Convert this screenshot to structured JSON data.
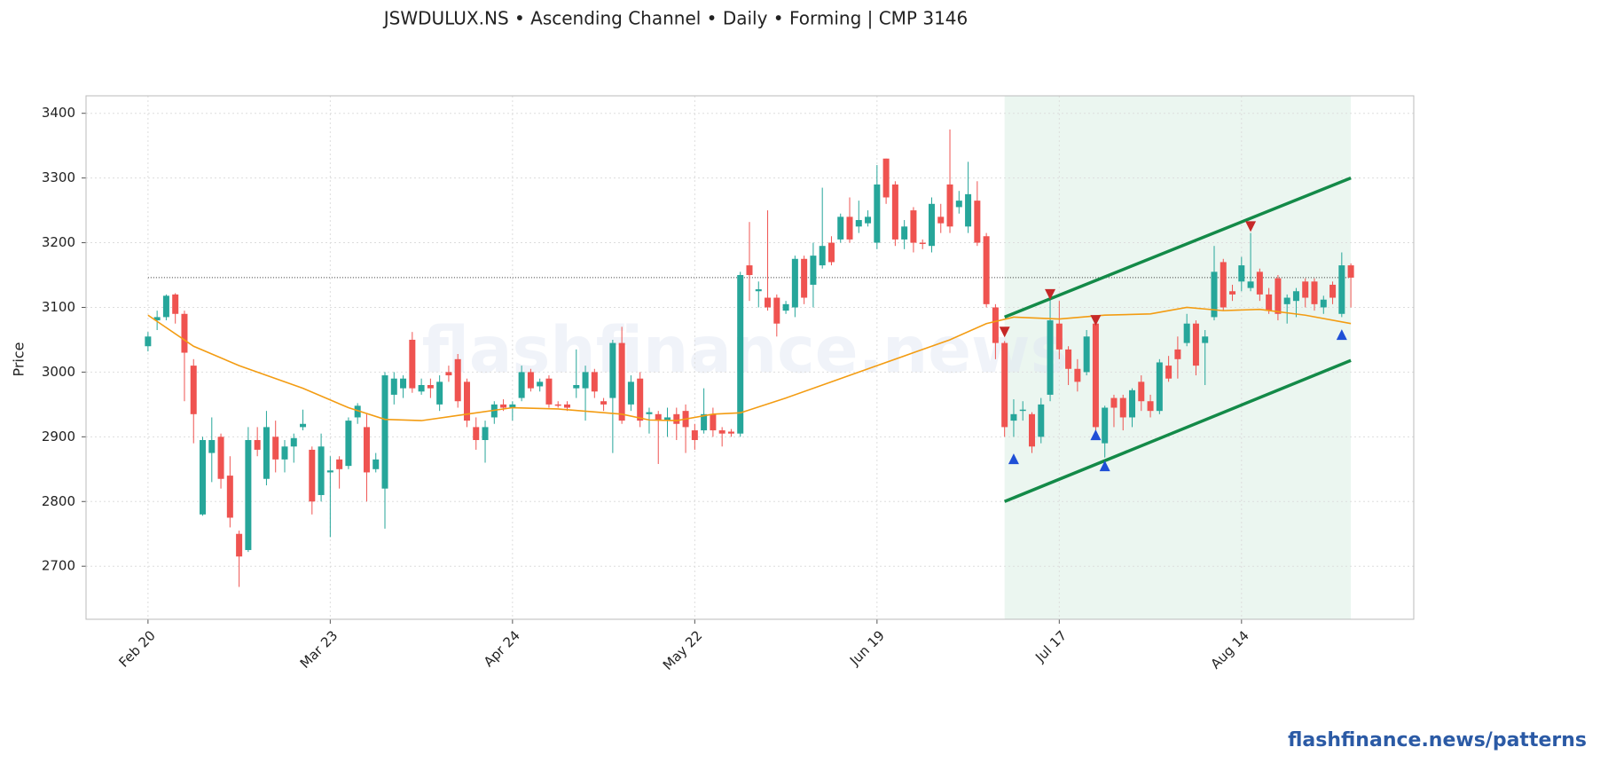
{
  "chart_data": {
    "type": "candlestick",
    "title": "JSWDULUX.NS  •  Ascending Channel  •  Daily  •  Forming  |  CMP 3146",
    "y_label": "Price",
    "watermark": "flashfinance.news",
    "footer": "flashfinance.news/patterns",
    "xlim": [
      -6.8,
      138.9
    ],
    "xticks": [
      {
        "value": 0,
        "label": "Feb 20"
      },
      {
        "value": 20,
        "label": "Mar 23"
      },
      {
        "value": 40,
        "label": "Apr 24"
      },
      {
        "value": 60,
        "label": "May 22"
      },
      {
        "value": 80,
        "label": "Jun 19"
      },
      {
        "value": 100,
        "label": "Jul 17"
      },
      {
        "value": 120,
        "label": "Aug 14"
      }
    ],
    "ylim": [
      2618,
      3427
    ],
    "yticks": [
      2700,
      2800,
      2900,
      3000,
      3100,
      3200,
      3300,
      3400
    ],
    "grid": true,
    "up_color": "#26a69a",
    "down_color": "#ef5350",
    "open": [
      3040,
      3080,
      3085,
      3120,
      3090,
      3010,
      2780,
      2875,
      2900,
      2840,
      2750,
      2725,
      2895,
      2835,
      2900,
      2865,
      2885,
      2915,
      2880,
      2810,
      2845,
      2865,
      2855,
      2930,
      2915,
      2850,
      2820,
      2965,
      2975,
      3050,
      2970,
      2980,
      2950,
      3000,
      3020,
      2985,
      2915,
      2895,
      2930,
      2950,
      2945,
      2960,
      3000,
      2978,
      2990,
      2950,
      2950,
      2975,
      2975,
      3000,
      2955,
      2960,
      3045,
      2950,
      2990,
      2935,
      2935,
      2925,
      2935,
      2940,
      2910,
      2910,
      2935,
      2910,
      2908,
      2905,
      3165,
      3125,
      3115,
      3115,
      3095,
      3100,
      3175,
      3135,
      3165,
      3200,
      3205,
      3240,
      3225,
      3230,
      3200,
      3330,
      3290,
      3205,
      3250,
      3200,
      3195,
      3240,
      3290,
      3255,
      3225,
      3265,
      3210,
      3100,
      3045,
      2925,
      2940,
      2935,
      2900,
      2965,
      3075,
      3035,
      3005,
      3000,
      3075,
      2890,
      2960,
      2960,
      2930,
      2985,
      2955,
      2940,
      3010,
      3035,
      3045,
      3075,
      3045,
      3085,
      3170,
      3125,
      3140,
      3130,
      3155,
      3120,
      3145,
      3105,
      3110,
      3140,
      3140,
      3100,
      3135,
      3090,
      3165
    ],
    "high": [
      3062,
      3095,
      3120,
      3122,
      3095,
      3020,
      2900,
      2930,
      2905,
      2870,
      2755,
      2915,
      2915,
      2940,
      2925,
      2895,
      2905,
      2942,
      2885,
      2905,
      2870,
      2870,
      2930,
      2952,
      2935,
      2875,
      3000,
      3000,
      2995,
      3062,
      2990,
      2990,
      2995,
      3010,
      3028,
      2990,
      2930,
      2925,
      2955,
      2958,
      2955,
      3010,
      3005,
      2990,
      2995,
      2955,
      2955,
      3035,
      3010,
      3005,
      2960,
      3050,
      3070,
      2995,
      3000,
      2945,
      2940,
      2945,
      2945,
      2950,
      2920,
      2975,
      2945,
      2915,
      2912,
      3155,
      3232,
      3140,
      3250,
      3120,
      3110,
      3180,
      3180,
      3200,
      3285,
      3210,
      3245,
      3270,
      3265,
      3250,
      3320,
      3330,
      3295,
      3235,
      3255,
      3205,
      3270,
      3260,
      3375,
      3280,
      3325,
      3295,
      3215,
      3105,
      3048,
      2958,
      2955,
      2938,
      2960,
      3118,
      3110,
      3040,
      3020,
      3065,
      3085,
      2948,
      2965,
      2965,
      2975,
      2995,
      2965,
      3020,
      3025,
      3055,
      3090,
      3080,
      3065,
      3195,
      3175,
      3135,
      3178,
      3215,
      3160,
      3130,
      3150,
      3120,
      3130,
      3145,
      3145,
      3118,
      3140,
      3185,
      3168
    ],
    "low": [
      3032,
      3065,
      3080,
      3075,
      2955,
      2890,
      2778,
      2830,
      2820,
      2760,
      2668,
      2722,
      2870,
      2825,
      2845,
      2845,
      2860,
      2910,
      2780,
      2800,
      2745,
      2820,
      2850,
      2920,
      2800,
      2845,
      2758,
      2950,
      2960,
      2968,
      2965,
      2960,
      2940,
      2985,
      2945,
      2915,
      2880,
      2860,
      2920,
      2940,
      2925,
      2955,
      2970,
      2970,
      2945,
      2945,
      2940,
      2960,
      2925,
      2960,
      2940,
      2875,
      2920,
      2940,
      2915,
      2905,
      2858,
      2900,
      2895,
      2875,
      2880,
      2905,
      2900,
      2885,
      2900,
      2900,
      3110,
      3100,
      3095,
      3055,
      3090,
      3085,
      3105,
      3100,
      3160,
      3165,
      3200,
      3200,
      3215,
      3225,
      3190,
      3260,
      3195,
      3190,
      3185,
      3190,
      3185,
      3215,
      3215,
      3245,
      3215,
      3195,
      3100,
      3020,
      2900,
      2900,
      2925,
      2875,
      2890,
      2955,
      3020,
      2980,
      2970,
      2995,
      2905,
      2868,
      2915,
      2910,
      2915,
      2940,
      2930,
      2935,
      2985,
      2990,
      3040,
      2995,
      2980,
      3080,
      3095,
      3110,
      3125,
      3125,
      3110,
      3090,
      3080,
      3075,
      3085,
      3100,
      3095,
      3090,
      3105,
      3085,
      3100
    ],
    "close": [
      3055,
      3085,
      3118,
      3090,
      3030,
      2935,
      2895,
      2895,
      2835,
      2775,
      2715,
      2895,
      2880,
      2915,
      2865,
      2885,
      2898,
      2920,
      2800,
      2885,
      2848,
      2850,
      2925,
      2948,
      2845,
      2865,
      2995,
      2990,
      2990,
      2975,
      2980,
      2975,
      2985,
      2995,
      2955,
      2925,
      2895,
      2915,
      2950,
      2945,
      2950,
      3000,
      2975,
      2985,
      2950,
      2948,
      2945,
      2980,
      3000,
      2970,
      2950,
      3045,
      2925,
      2985,
      2925,
      2938,
      2925,
      2930,
      2920,
      2915,
      2895,
      2935,
      2910,
      2905,
      2905,
      3150,
      3150,
      3128,
      3100,
      3075,
      3105,
      3175,
      3115,
      3180,
      3195,
      3170,
      3240,
      3205,
      3235,
      3240,
      3290,
      3270,
      3205,
      3225,
      3200,
      3198,
      3260,
      3230,
      3225,
      3265,
      3275,
      3200,
      3105,
      3045,
      2915,
      2935,
      2942,
      2885,
      2950,
      3080,
      3035,
      3005,
      2985,
      3055,
      2915,
      2945,
      2945,
      2930,
      2972,
      2955,
      2940,
      3015,
      2990,
      3020,
      3075,
      3010,
      3055,
      3155,
      3100,
      3120,
      3165,
      3140,
      3120,
      3095,
      3090,
      3115,
      3125,
      3115,
      3105,
      3112,
      3115,
      3165,
      3146
    ],
    "sma": {
      "color": "#f39c12",
      "x": [
        0,
        5,
        10,
        17,
        22,
        26,
        30,
        35,
        40,
        45,
        52,
        55,
        58,
        62,
        65,
        70,
        75,
        79,
        84,
        88,
        92,
        95,
        100,
        105,
        110,
        114,
        118,
        122,
        127,
        132
      ],
      "values": [
        3088,
        3040,
        3010,
        2975,
        2945,
        2927,
        2925,
        2935,
        2945,
        2943,
        2935,
        2926,
        2925,
        2935,
        2937,
        2960,
        2985,
        3005,
        3030,
        3050,
        3075,
        3085,
        3082,
        3088,
        3090,
        3100,
        3095,
        3097,
        3088,
        3075
      ]
    },
    "cmp": 3146,
    "pattern_range": [
      94,
      132
    ],
    "channel_color": "#138a48",
    "channel_upper": {
      "x": [
        94,
        132
      ],
      "values": [
        3085,
        3300
      ]
    },
    "channel_lower": {
      "x": [
        94,
        132
      ],
      "values": [
        2800,
        3018
      ]
    },
    "swing_highs": {
      "color": "#c62828",
      "x": [
        94,
        99,
        104,
        121
      ],
      "values": [
        3062,
        3120,
        3080,
        3225
      ]
    },
    "swing_lows": {
      "color": "#1f4fd6",
      "x": [
        95,
        104,
        105,
        131
      ],
      "values": [
        2866,
        2903,
        2855,
        3058
      ]
    }
  }
}
